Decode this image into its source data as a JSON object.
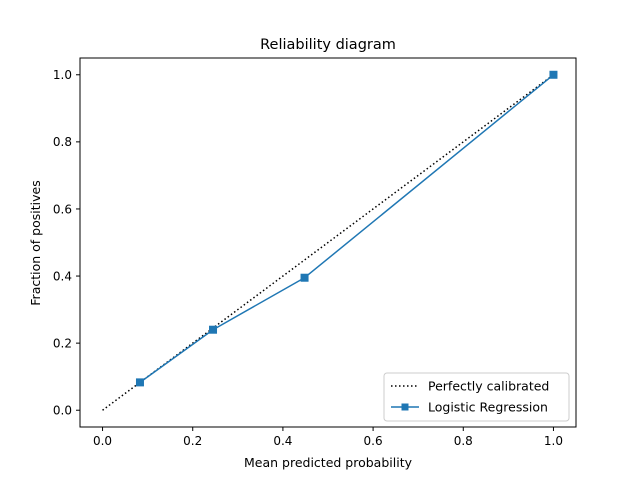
{
  "chart_data": {
    "type": "line",
    "title": "Reliability diagram",
    "xlabel": "Mean predicted probability",
    "ylabel": "Fraction of positives",
    "xlim": [
      -0.05,
      1.05
    ],
    "ylim": [
      -0.05,
      1.05
    ],
    "xticks": [
      "0.0",
      "0.2",
      "0.4",
      "0.6",
      "0.8",
      "1.0"
    ],
    "yticks": [
      "0.0",
      "0.2",
      "0.4",
      "0.6",
      "0.8",
      "1.0"
    ],
    "grid": false,
    "legend_position": "lower-right",
    "series": [
      {
        "name": "Perfectly calibrated",
        "style": "dotted",
        "color": "#000000",
        "x": [
          0.0,
          1.0
        ],
        "y": [
          0.0,
          1.0
        ]
      },
      {
        "name": "Logistic Regression",
        "style": "solid",
        "marker": "square",
        "color": "#1f77b4",
        "x": [
          0.083,
          0.245,
          0.448,
          1.0
        ],
        "y": [
          0.083,
          0.24,
          0.395,
          1.0
        ]
      }
    ]
  }
}
